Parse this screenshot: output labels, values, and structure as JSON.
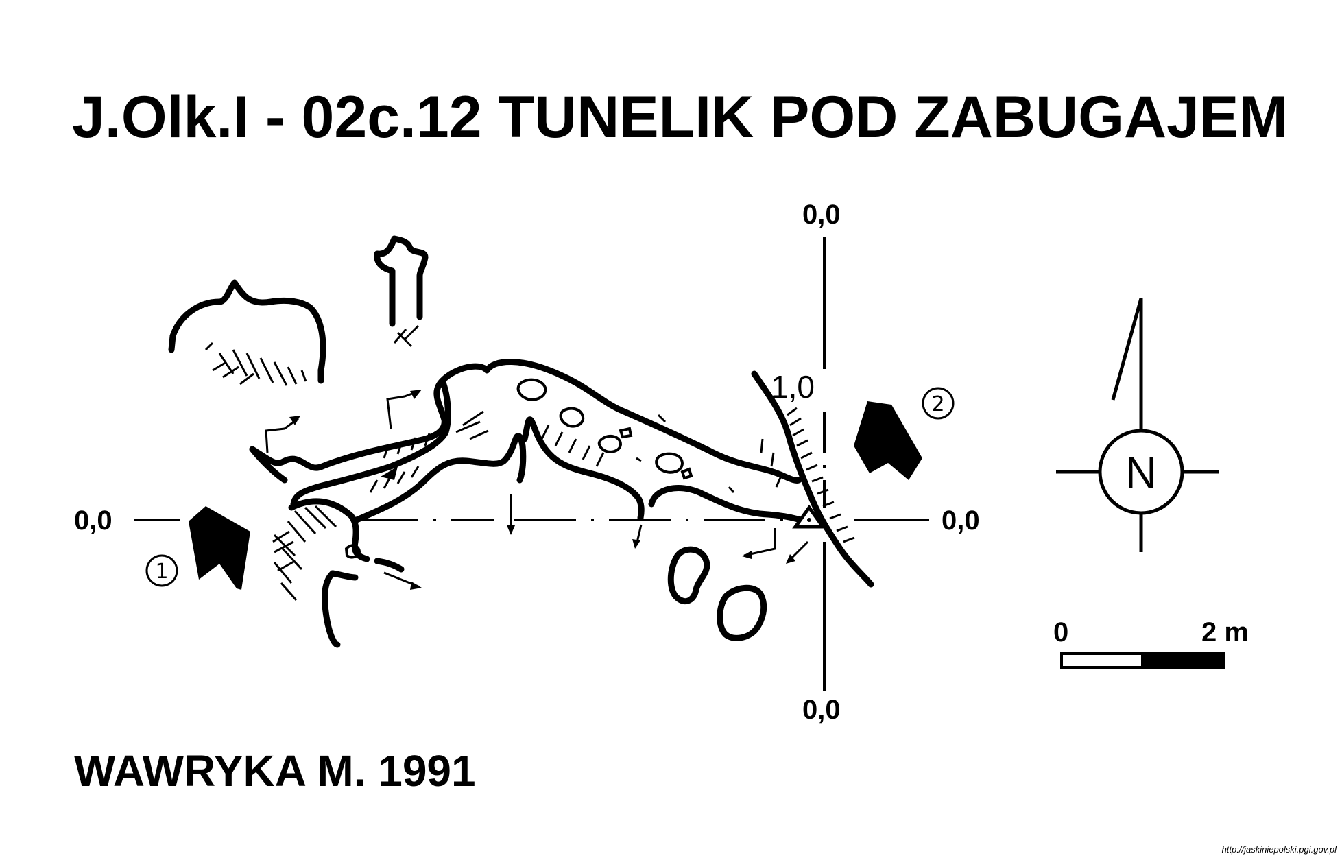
{
  "title": "J.Olk.I - 02c.12  TUNELIK POD ZABUGAJEM",
  "author": "WAWRYKA M. 1991",
  "source": "http://jaskiniepolski.pgi.gov.pl",
  "profile_labels": {
    "left": "0,0",
    "right": "0,0",
    "top": "0,0",
    "bottom": "0,0",
    "mid": "1,0"
  },
  "entrances": {
    "one": "1",
    "two": "2"
  },
  "scale": {
    "start": "0",
    "end": "2 m"
  },
  "north": "N",
  "colors": {
    "ink": "#000000",
    "paper": "#ffffff"
  }
}
